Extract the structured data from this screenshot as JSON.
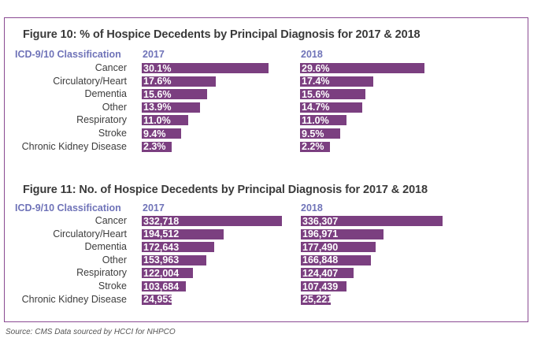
{
  "source": "Source: CMS Data sourced by HCCI for NHPCO",
  "colors": {
    "bar": "#7b3f80",
    "header": "#6f73b8",
    "frame": "#8a4a92"
  },
  "chart_data": [
    {
      "type": "bar",
      "orientation": "horizontal",
      "title": "Figure 10: % of Hospice Decedents by Principal Diagnosis for 2017 & 2018",
      "category_header": "ICD-9/10 Classification",
      "categories": [
        "Cancer",
        "Circulatory/Heart",
        "Dementia",
        "Other",
        "Respiratory",
        "Stroke",
        "Chronic Kidney Disease"
      ],
      "unit": "%",
      "series": [
        {
          "name": "2017",
          "values": [
            30.1,
            17.6,
            15.6,
            13.9,
            11.0,
            9.4,
            2.3
          ],
          "labels": [
            "30.1%",
            "17.6%",
            "15.6%",
            "13.9%",
            "11.0%",
            "9.4%",
            "2.3%"
          ]
        },
        {
          "name": "2018",
          "values": [
            29.6,
            17.4,
            15.6,
            14.7,
            11.0,
            9.5,
            2.2
          ],
          "labels": [
            "29.6%",
            "17.4%",
            "15.6%",
            "14.7%",
            "11.0%",
            "9.5%",
            "2.2%"
          ]
        }
      ],
      "grid": false
    },
    {
      "type": "bar",
      "orientation": "horizontal",
      "title": "Figure 11: No. of Hospice Decedents by Principal Diagnosis for 2017 & 2018",
      "category_header": "ICD-9/10 Classification",
      "categories": [
        "Cancer",
        "Circulatory/Heart",
        "Dementia",
        "Other",
        "Respiratory",
        "Stroke",
        "Chronic Kidney Disease"
      ],
      "unit": "count",
      "series": [
        {
          "name": "2017",
          "values": [
            332718,
            194512,
            172643,
            153963,
            122004,
            103684,
            24953
          ],
          "labels": [
            "332,718",
            "194,512",
            "172,643",
            "153,963",
            "122,004",
            "103,684",
            "24,953"
          ]
        },
        {
          "name": "2018",
          "values": [
            336307,
            196971,
            177490,
            166848,
            124407,
            107439,
            25221
          ],
          "labels": [
            "336,307",
            "196,971",
            "177,490",
            "166,848",
            "124,407",
            "107,439",
            "25,221"
          ]
        }
      ],
      "grid": false
    }
  ]
}
